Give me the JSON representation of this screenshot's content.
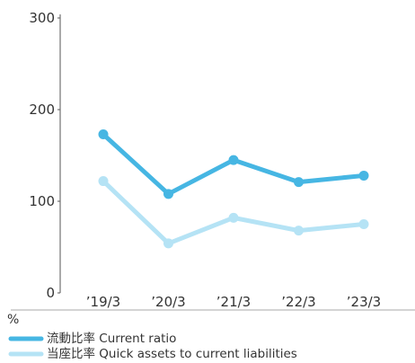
{
  "chart_data": {
    "type": "line",
    "categories": [
      "’19/3",
      "’20/3",
      "’21/3",
      "’22/3",
      "’23/3"
    ],
    "y_unit": "%",
    "ylim": [
      0,
      300
    ],
    "y_ticks": [
      0,
      100,
      200,
      300
    ],
    "grid": false,
    "legend_position": "bottom",
    "series": [
      {
        "name": "流動比率  Current ratio",
        "values": [
          173,
          108,
          145,
          121,
          128
        ],
        "color": "#46b6e3"
      },
      {
        "name": "当座比率  Quick assets to current liabilities",
        "values": [
          122,
          54,
          82,
          68,
          75
        ],
        "color": "#b5e3f5"
      }
    ]
  }
}
